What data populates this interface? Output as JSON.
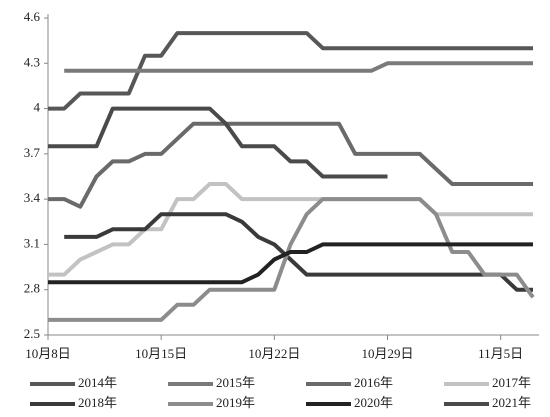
{
  "chart_data": {
    "type": "line",
    "categories": [
      "10月8日",
      null,
      null,
      null,
      null,
      null,
      null,
      "10月15日",
      null,
      null,
      null,
      null,
      null,
      null,
      "10月22日",
      null,
      null,
      null,
      null,
      null,
      null,
      "10月29日",
      null,
      null,
      null,
      null,
      null,
      null,
      "11月5日",
      null,
      null
    ],
    "ylim": [
      2.5,
      4.6
    ],
    "yticks": [
      2.5,
      2.8,
      3.1,
      3.4,
      3.7,
      4,
      4.3,
      4.6
    ],
    "grid": false,
    "series": [
      {
        "name": "2014年",
        "color": "#575757",
        "values": [
          4.0,
          4.0,
          4.1,
          4.1,
          4.1,
          4.1,
          4.35,
          4.35,
          4.5,
          4.5,
          4.5,
          4.5,
          4.5,
          4.5,
          4.5,
          4.5,
          4.5,
          4.4,
          4.4,
          4.4,
          4.4,
          4.4,
          4.4,
          4.4,
          4.4,
          4.4,
          4.4,
          4.4,
          4.4,
          4.4,
          4.4
        ]
      },
      {
        "name": "2015年",
        "color": "#7a7a7a",
        "values": [
          null,
          4.25,
          4.25,
          4.25,
          4.25,
          4.25,
          4.25,
          4.25,
          4.25,
          4.25,
          4.25,
          4.25,
          4.25,
          4.25,
          4.25,
          4.25,
          4.25,
          4.25,
          4.25,
          4.25,
          4.25,
          4.3,
          4.3,
          4.3,
          4.3,
          4.3,
          4.3,
          4.3,
          4.3,
          4.3,
          4.3
        ]
      },
      {
        "name": "2016年",
        "color": "#6a6a6a",
        "values": [
          3.4,
          3.4,
          3.35,
          3.55,
          3.65,
          3.65,
          3.7,
          3.7,
          3.8,
          3.9,
          3.9,
          3.9,
          3.9,
          3.9,
          3.9,
          3.9,
          3.9,
          3.9,
          3.9,
          3.7,
          3.7,
          3.7,
          3.7,
          3.7,
          3.6,
          3.5,
          3.5,
          3.5,
          3.5,
          3.5,
          3.5
        ]
      },
      {
        "name": "2017年",
        "color": "#c2c2c2",
        "values": [
          2.9,
          2.9,
          3.0,
          3.05,
          3.1,
          3.1,
          3.2,
          3.2,
          3.4,
          3.4,
          3.5,
          3.5,
          3.4,
          3.4,
          3.4,
          3.4,
          3.4,
          3.4,
          3.4,
          3.4,
          3.4,
          3.4,
          3.4,
          3.4,
          3.3,
          3.3,
          3.3,
          3.3,
          3.3,
          3.3,
          3.3
        ]
      },
      {
        "name": "2018年",
        "color": "#3a3a3a",
        "values": [
          null,
          3.15,
          3.15,
          3.15,
          3.2,
          3.2,
          3.2,
          3.3,
          3.3,
          3.3,
          3.3,
          3.3,
          3.25,
          3.15,
          3.1,
          3.0,
          2.9,
          2.9,
          2.9,
          2.9,
          2.9,
          2.9,
          2.9,
          2.9,
          2.9,
          2.9,
          2.9,
          2.9,
          2.9,
          2.8,
          2.8
        ]
      },
      {
        "name": "2019年",
        "color": "#8c8c8c",
        "values": [
          2.6,
          2.6,
          2.6,
          2.6,
          2.6,
          2.6,
          2.6,
          2.6,
          2.7,
          2.7,
          2.8,
          2.8,
          2.8,
          2.8,
          2.8,
          3.1,
          3.3,
          3.4,
          3.4,
          3.4,
          3.4,
          3.4,
          3.4,
          3.4,
          3.3,
          3.05,
          3.05,
          2.9,
          2.9,
          2.9,
          2.75
        ]
      },
      {
        "name": "2020年",
        "color": "#222222",
        "values": [
          2.85,
          2.85,
          2.85,
          2.85,
          2.85,
          2.85,
          2.85,
          2.85,
          2.85,
          2.85,
          2.85,
          2.85,
          2.85,
          2.9,
          3.0,
          3.05,
          3.05,
          3.1,
          3.1,
          3.1,
          3.1,
          3.1,
          3.1,
          3.1,
          3.1,
          3.1,
          3.1,
          3.1,
          3.1,
          3.1,
          3.1
        ]
      },
      {
        "name": "2021年",
        "color": "#4a4a4a",
        "values": [
          3.75,
          3.75,
          3.75,
          3.75,
          4.0,
          4.0,
          4.0,
          4.0,
          4.0,
          4.0,
          4.0,
          3.9,
          3.75,
          3.75,
          3.75,
          3.65,
          3.65,
          3.55,
          3.55,
          3.55,
          3.55,
          3.55,
          null,
          null,
          null,
          null,
          null,
          null,
          null,
          null,
          null
        ]
      }
    ]
  }
}
